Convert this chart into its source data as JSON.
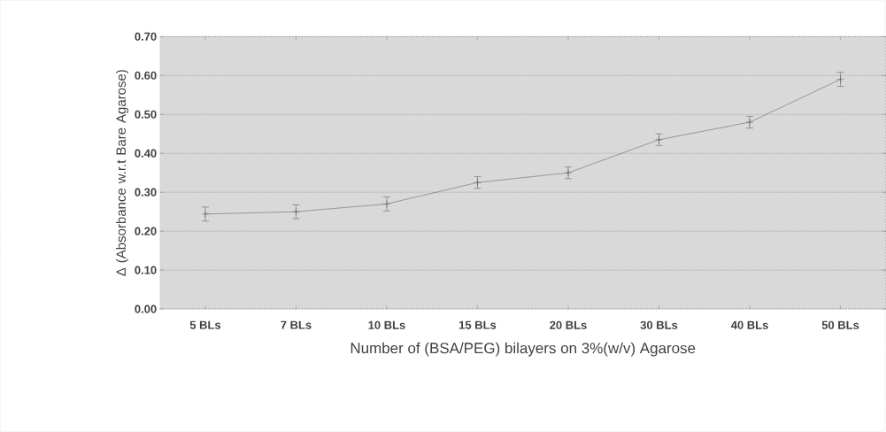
{
  "chart_data": {
    "type": "line",
    "xlabel": "Number of (BSA/PEG) bilayers on 3%(w/v) Agarose",
    "ylabel": "Δ (Absorbance w.r.t Bare Agarose)",
    "categories": [
      "5 BLs",
      "7 BLs",
      "10 BLs",
      "15 BLs",
      "20 BLs",
      "30 BLs",
      "40 BLs",
      "50 BLs"
    ],
    "values": [
      0.244,
      0.25,
      0.27,
      0.325,
      0.35,
      0.435,
      0.48,
      0.59
    ],
    "errors": [
      0.018,
      0.018,
      0.018,
      0.015,
      0.015,
      0.015,
      0.015,
      0.018
    ],
    "color": "#333333",
    "marker": "cross",
    "grid": "y",
    "ylim": [
      0,
      0.7
    ],
    "yticks": [
      {
        "value": 0,
        "label": "0.00"
      },
      {
        "value": 0.1,
        "label": "0.10"
      },
      {
        "value": 0.2,
        "label": "0.20"
      },
      {
        "value": 0.3,
        "label": "0.30"
      },
      {
        "value": 0.4,
        "label": "0.40"
      },
      {
        "value": 0.5,
        "label": "0.50"
      },
      {
        "value": 0.6,
        "label": "0.60"
      },
      {
        "value": 0.7,
        "label": "0.70"
      }
    ]
  }
}
